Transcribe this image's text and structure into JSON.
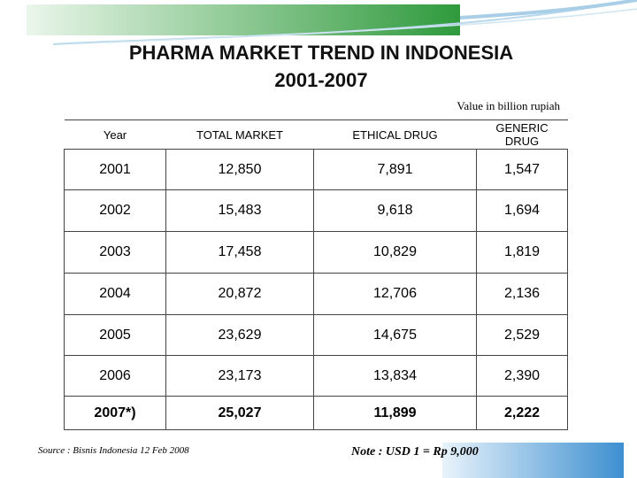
{
  "header": {
    "title_line1": "PHARMA MARKET TREND IN INDONESIA",
    "title_line2": "2001-2007",
    "unit": "Value in billion rupiah"
  },
  "table": {
    "columns": [
      "Year",
      "TOTAL MARKET",
      "ETHICAL DRUG",
      "GENERIC DRUG"
    ],
    "rows": [
      [
        "2001",
        "12,850",
        "7,891",
        "1,547"
      ],
      [
        "2002",
        "15,483",
        "9,618",
        "1,694"
      ],
      [
        "2003",
        "17,458",
        "10,829",
        "1,819"
      ],
      [
        "2004",
        "20,872",
        "12,706",
        "2,136"
      ],
      [
        "2005",
        "23,629",
        "14,675",
        "2,529"
      ],
      [
        "2006",
        "23,173",
        "13,834",
        "2,390"
      ],
      [
        "2007*)",
        "25,027",
        "11,899",
        "2,222"
      ]
    ]
  },
  "footer": {
    "source": "Source  : Bisnis Indonesia 12 Feb 2008",
    "note": "Note : USD 1 = Rp 9,000"
  }
}
